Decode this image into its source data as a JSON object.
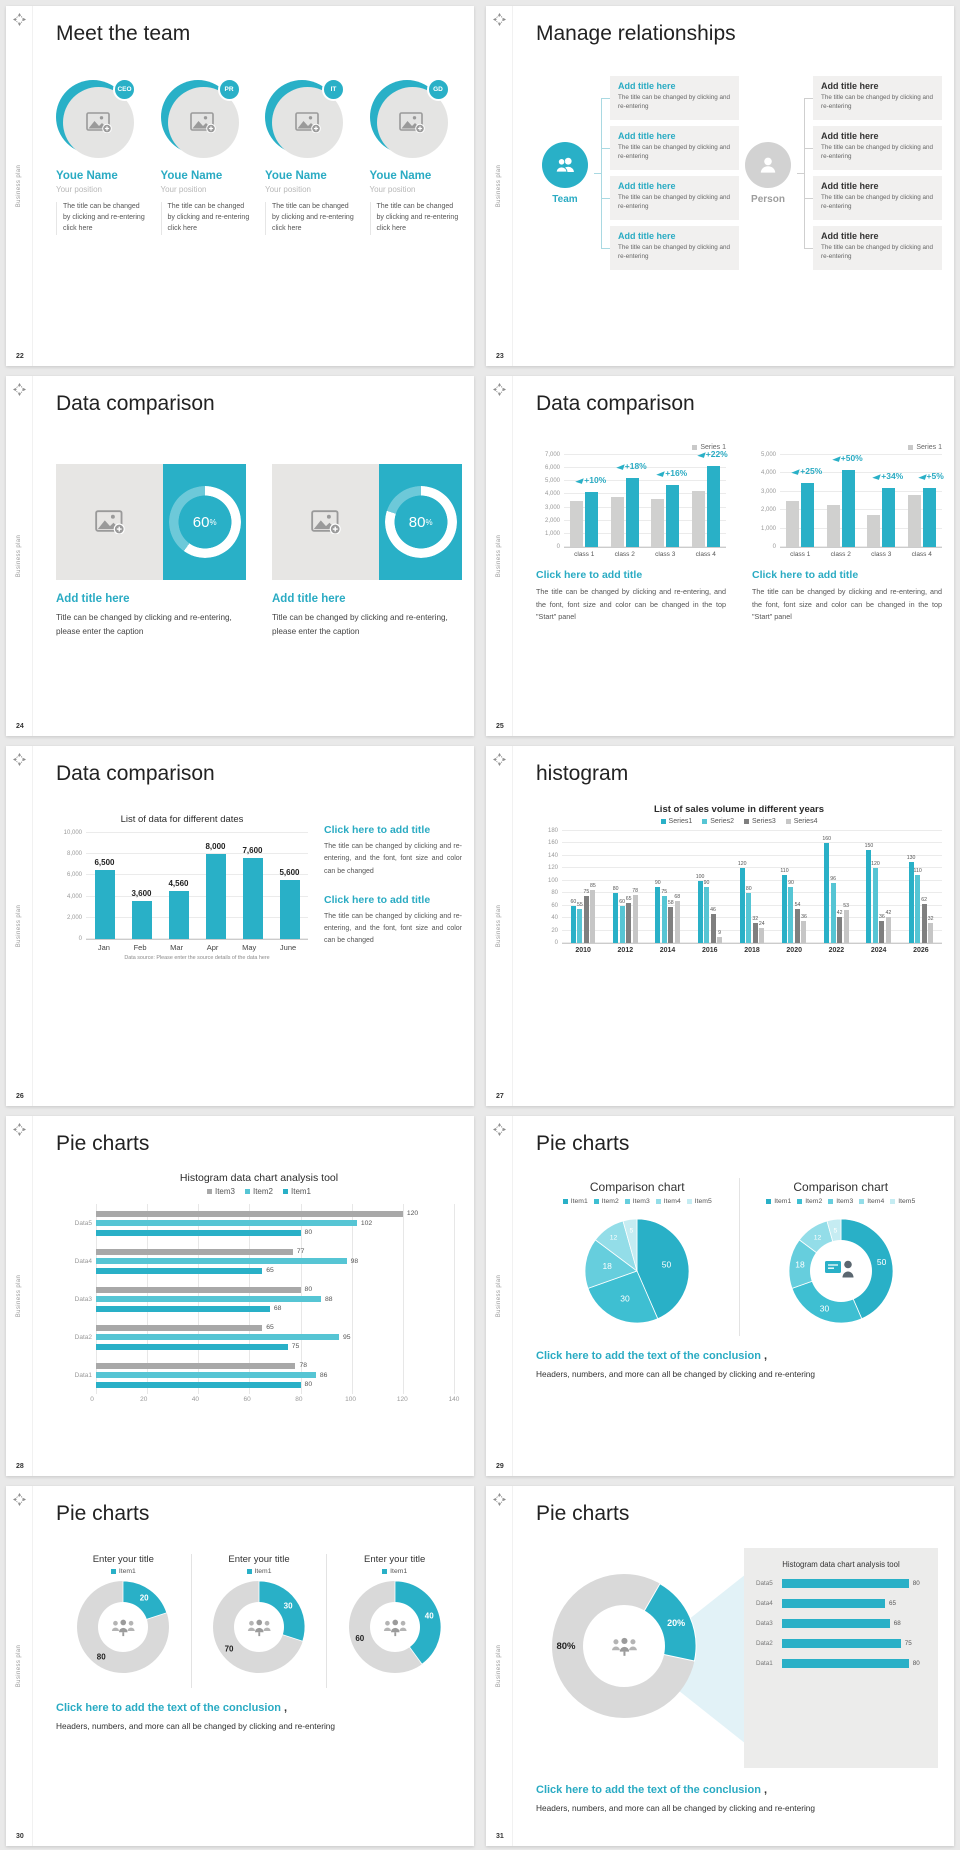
{
  "sidebar_label": "Business plan",
  "colors": {
    "accent": "#29b0c7",
    "accent_text": "#2aabc3",
    "teal_light": "#56c5d4",
    "gray_dark_series": "#7f7f7f",
    "gray_light_series": "#c6c6c6",
    "hbar_gray": "#a8a8a8",
    "donut_gray": "#d9d9d9",
    "pie_shades": [
      "#29b0c7",
      "#3ebfd2",
      "#66cedd",
      "#93dde8",
      "#c5ecf2"
    ],
    "connector_team": "#a9d9e2",
    "connector_person": "#cfcfcf"
  },
  "conclusion": {
    "title": "Click here to add the text of the conclusion",
    "comma": " ,",
    "body": "Headers, numbers, and more can all be changed by clicking and re-entering"
  },
  "slides": [
    {
      "id": "meet-team",
      "page": "22",
      "title": "Meet the team",
      "members": [
        {
          "badge": "CEO",
          "name": "Youe Name",
          "position": "Your position",
          "caption": "The title can be changed by clicking and re-entering click here"
        },
        {
          "badge": "PR",
          "name": "Youe Name",
          "position": "Your position",
          "caption": "The title can be changed by clicking and re-entering click here"
        },
        {
          "badge": "IT",
          "name": "Youe Name",
          "position": "Your position",
          "caption": "The title can be changed by clicking and re-entering click here"
        },
        {
          "badge": "GD",
          "name": "Youe Name",
          "position": "Your position",
          "caption": "The title can be changed by clicking and re-entering click here"
        }
      ]
    },
    {
      "id": "relationships",
      "page": "23",
      "title": "Manage relationships",
      "groups": [
        {
          "label": "Team",
          "icon": "team-icon",
          "box_title": "Add title here",
          "box_body": "The title can be changed by clicking and re-entering",
          "count": 4
        },
        {
          "label": "Person",
          "icon": "person-icon",
          "box_title": "Add title here",
          "box_body": "The title can be changed by clicking and re-entering",
          "count": 4
        }
      ]
    },
    {
      "id": "data-cards",
      "page": "24",
      "title": "Data comparison",
      "cards": [
        {
          "percent": "60",
          "unit": "%",
          "heading": "Add title here",
          "body": "Title can be changed by clicking and re-entering, please enter the caption"
        },
        {
          "percent": "80",
          "unit": "%",
          "heading": "Add title here",
          "body": "Title can be changed by clicking and re-entering, please enter the caption"
        }
      ]
    },
    {
      "id": "pair-charts",
      "page": "25",
      "title": "Data comparison",
      "caption_title": "Click here to add title",
      "caption_body": "The title can be changed by clicking and re-entering, and the font, font size and color can be changed in the top \"Start\" panel",
      "charts": [
        {
          "legend": "Series 1",
          "ymax": 7000,
          "yticks": [
            "7,000",
            "6,000",
            "5,000",
            "4,000",
            "3,000",
            "2,000",
            "1,000",
            "0"
          ],
          "categories": [
            "class 1",
            "class 2",
            "class 3",
            "class 4"
          ],
          "gray_values": [
            3500,
            3800,
            3650,
            4250
          ],
          "teal_values": [
            4200,
            5250,
            4750,
            6200
          ],
          "growth_labels": [
            "+10%",
            "+18%",
            "+16%",
            "+22%"
          ]
        },
        {
          "legend": "Series 1",
          "ymax": 5000,
          "yticks": [
            "5,000",
            "4,000",
            "3,000",
            "2,000",
            "1,000",
            "0"
          ],
          "categories": [
            "class 1",
            "class 2",
            "class 3",
            "class 4"
          ],
          "gray_values": [
            2500,
            2300,
            1750,
            2850
          ],
          "teal_values": [
            3500,
            4200,
            3200,
            3200
          ],
          "growth_labels": [
            "+25%",
            "+50%",
            "+34%",
            "+5%"
          ]
        }
      ]
    },
    {
      "id": "dates-chart",
      "page": "26",
      "title": "Data comparison",
      "chart": {
        "title": "List of data for different dates",
        "ymax": 10000,
        "yticks": [
          "10,000",
          "8,000",
          "6,000",
          "4,000",
          "2,000",
          "0"
        ],
        "categories": [
          "Jan",
          "Feb",
          "Mar",
          "Apr",
          "May",
          "June"
        ],
        "values": [
          6500,
          3600,
          4560,
          8000,
          7600,
          5600
        ],
        "value_labels": [
          "6,500",
          "3,600",
          "4,560",
          "8,000",
          "7,600",
          "5,600"
        ],
        "footnote": "Data source: Please enter the source details of the data here"
      },
      "blocks": [
        {
          "title": "Click here to add title",
          "body": "The title can be changed by clicking and re-entering, and the font, font size and color can be changed"
        },
        {
          "title": "Click here to add title",
          "body": "The title can be changed by clicking and re-entering, and the font, font size and color can be changed"
        }
      ]
    },
    {
      "id": "histogram",
      "page": "27",
      "title": "histogram",
      "chart": {
        "title": "List of sales volume in different years",
        "ymax": 180,
        "yticks": [
          "180",
          "160",
          "140",
          "120",
          "100",
          "80",
          "60",
          "40",
          "20",
          "0"
        ],
        "years": [
          "2010",
          "2012",
          "2014",
          "2016",
          "2018",
          "2020",
          "2022",
          "2024",
          "2026"
        ],
        "series": [
          {
            "name": "Series1",
            "values": [
              60,
              80,
              90,
              100,
              120,
              110,
              160,
              150,
              130
            ]
          },
          {
            "name": "Series2",
            "values": [
              55,
              60,
              75,
              90,
              80,
              90,
              96,
              120,
              110
            ]
          },
          {
            "name": "Series3",
            "values": [
              75,
              65,
              58,
              46,
              32,
              54,
              42,
              36,
              62
            ]
          },
          {
            "name": "Series4",
            "values": [
              85,
              78,
              68,
              9,
              24,
              36,
              53,
              42,
              32
            ]
          }
        ]
      }
    },
    {
      "id": "hbar",
      "page": "28",
      "title": "Pie charts",
      "chart": {
        "title": "Histogram data chart analysis tool",
        "legend": [
          "Item3",
          "Item2",
          "Item1"
        ],
        "categories": [
          "Data5",
          "Data4",
          "Data3",
          "Data2",
          "Data1"
        ],
        "series": [
          {
            "name": "Item3",
            "values": [
              120,
              77,
              80,
              65,
              78
            ]
          },
          {
            "name": "Item2",
            "values": [
              102,
              98,
              88,
              95,
              86
            ]
          },
          {
            "name": "Item1",
            "values": [
              80,
              65,
              68,
              75,
              80
            ]
          }
        ],
        "xmax": 140,
        "xticks": [
          "0",
          "20",
          "40",
          "60",
          "80",
          "100",
          "120",
          "140"
        ]
      }
    },
    {
      "id": "pies",
      "page": "29",
      "title": "Pie charts",
      "charts": [
        {
          "type": "pie",
          "title": "Comparison chart",
          "legend": [
            "Item1",
            "Item2",
            "Item3",
            "Item4",
            "Item5"
          ],
          "values": [
            50,
            30,
            18,
            12,
            5
          ]
        },
        {
          "type": "donut",
          "title": "Comparison chart",
          "legend": [
            "Item1",
            "Item2",
            "Item3",
            "Item4",
            "Item5"
          ],
          "values": [
            50,
            30,
            18,
            12,
            5
          ]
        }
      ]
    },
    {
      "id": "donuts",
      "page": "30",
      "title": "Pie charts",
      "donuts": [
        {
          "title": "Enter your title",
          "legend": "Item1",
          "value": 20,
          "rest": 80
        },
        {
          "title": "Enter your title",
          "legend": "Item1",
          "value": 30,
          "rest": 70
        },
        {
          "title": "Enter your title",
          "legend": "Item1",
          "value": 40,
          "rest": 60
        }
      ]
    },
    {
      "id": "donut-callout",
      "page": "31",
      "title": "Pie charts",
      "donut": {
        "main_label": "80%",
        "slice_label": "20%",
        "main": 80,
        "slice": 20
      },
      "panel": {
        "title": "Histogram data chart analysis tool",
        "categories": [
          "Data5",
          "Data4",
          "Data3",
          "Data2",
          "Data1"
        ],
        "values": [
          80,
          65,
          68,
          75,
          80
        ],
        "xmax": 80
      }
    }
  ]
}
